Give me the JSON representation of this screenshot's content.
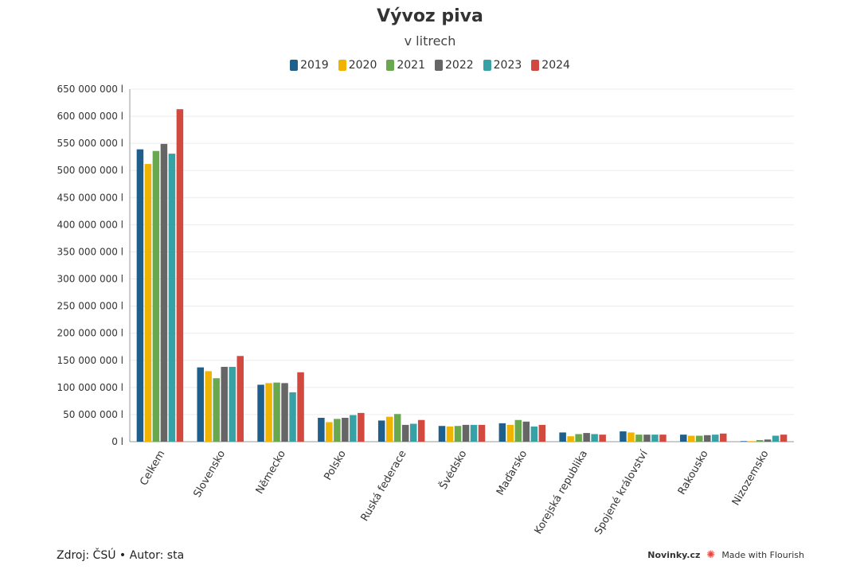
{
  "chart_data": {
    "type": "bar",
    "title": "Vývoz piva",
    "subtitle": "v litrech",
    "categories": [
      "Celkem",
      "Slovensko",
      "Německo",
      "Polsko",
      "Ruská federace",
      "Švédsko",
      "Maďarsko",
      "Korejská republika",
      "Spojené království",
      "Rakousko",
      "Nizozemsko"
    ],
    "series": [
      {
        "name": "2019",
        "color": "#1f5f8b",
        "values": [
          539000000,
          137000000,
          105000000,
          44000000,
          39000000,
          29000000,
          34000000,
          17000000,
          19000000,
          13000000,
          1000000
        ]
      },
      {
        "name": "2020",
        "color": "#f0b400",
        "values": [
          512000000,
          130000000,
          108000000,
          36000000,
          46000000,
          28000000,
          31000000,
          10000000,
          17000000,
          11000000,
          1000000
        ]
      },
      {
        "name": "2021",
        "color": "#6aa84f",
        "values": [
          536000000,
          117000000,
          109000000,
          42000000,
          51000000,
          29000000,
          40000000,
          14000000,
          13000000,
          11000000,
          3000000
        ]
      },
      {
        "name": "2022",
        "color": "#666666",
        "values": [
          549000000,
          138000000,
          108000000,
          44000000,
          31000000,
          31000000,
          37000000,
          16000000,
          13000000,
          12000000,
          4000000
        ]
      },
      {
        "name": "2023",
        "color": "#36a2a6",
        "values": [
          531000000,
          138000000,
          91000000,
          49000000,
          33000000,
          31000000,
          28000000,
          14000000,
          13000000,
          13000000,
          11000000
        ]
      },
      {
        "name": "2024",
        "color": "#d1493f",
        "values": [
          613000000,
          158000000,
          128000000,
          53000000,
          40000000,
          31000000,
          31000000,
          13000000,
          13000000,
          15000000,
          13000000
        ]
      }
    ],
    "yticks": [
      "0 l",
      "50 000 000 l",
      "100 000 000 l",
      "150 000 000 l",
      "200 000 000 l",
      "250 000 000 l",
      "300 000 000 l",
      "350 000 000 l",
      "400 000 000 l",
      "450 000 000 l",
      "500 000 000 l",
      "550 000 000 l",
      "600 000 000 l",
      "650 000 000 l"
    ],
    "ylim": [
      0,
      650000000
    ],
    "grid": true,
    "legend": "top-center"
  },
  "footer": {
    "source": "Zdroj: ČSÚ • Autor: sta",
    "brand": "Novinky.cz",
    "made_with": "Made with Flourish"
  }
}
